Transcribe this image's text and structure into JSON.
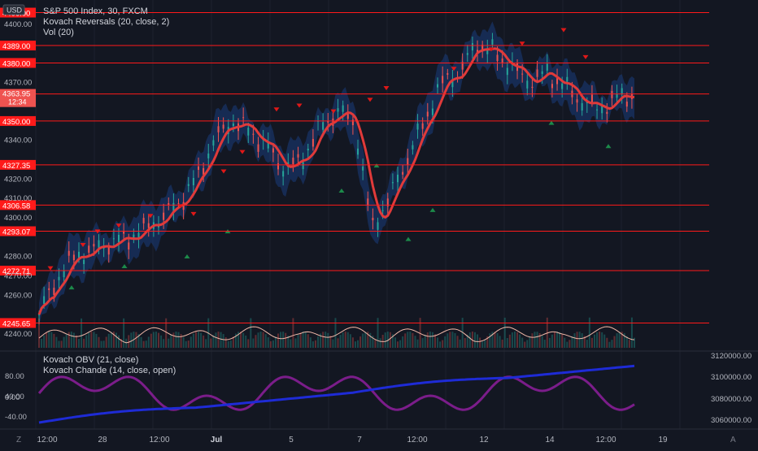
{
  "legend": {
    "symbol_line": "S&P 500 Index, 30, FXCM",
    "indicator_1": "Kovach Reversals (20, close, 2)",
    "indicator_2": "Vol (20)",
    "currency_badge": "USD"
  },
  "lower_pane": {
    "legend_1": "Kovach OBV (21, close)",
    "legend_2": "Kovach Chande (14, close, open)"
  },
  "price_axis_labels": [
    "4400.00",
    "4370.00",
    "4340.00",
    "4320.00",
    "4310.00",
    "4300.00",
    "4280.00",
    "4270.00",
    "4260.00",
    "4240.00"
  ],
  "horizontal_levels": [
    {
      "label": "4406.00"
    },
    {
      "label": "4389.00"
    },
    {
      "label": "4380.00"
    },
    {
      "label": "4364.00"
    },
    {
      "label": "4350.00"
    },
    {
      "label": "4327.35"
    },
    {
      "label": "4306.58"
    },
    {
      "label": "4293.07"
    },
    {
      "label": "4272.71"
    },
    {
      "label": "4245.65"
    }
  ],
  "last_price": {
    "price": "4363.95",
    "countdown": "12:34"
  },
  "lower_left_axis": [
    "80.00",
    "40.00",
    "0.00",
    "-40.00"
  ],
  "lower_right_axis": [
    "3120000.00",
    "3100000.00",
    "3080000.00",
    "3060000.00"
  ],
  "time_axis": [
    "12:00",
    "28",
    "12:00",
    "Jul",
    "5",
    "7",
    "12:00",
    "12",
    "14",
    "12:00",
    "19"
  ],
  "time_axis_icons": {
    "left": "Z",
    "right": "A"
  },
  "colors": {
    "background": "#131722",
    "level": "#ff1a1a",
    "ma": "#e03a3a",
    "band": "#1a3c7c",
    "obv": "#1e2bd6",
    "chande": "#7b1d8a",
    "up_arrow": "#1c8a4a",
    "down_arrow": "#e01818"
  },
  "chart_data": {
    "type": "line",
    "title": "S&P 500 Index, 30, FXCM",
    "y_range": [
      4232,
      4410
    ],
    "x": [
      "12:00",
      "28",
      "12:00",
      "Jul",
      "5",
      "7",
      "12:00",
      "12",
      "14",
      "12:00"
    ],
    "price_series": [
      4250,
      4268,
      4280,
      4283,
      4287,
      4289,
      4294,
      4300,
      4308,
      4320,
      4340,
      4350,
      4345,
      4337,
      4325,
      4330,
      4346,
      4355,
      4350,
      4295,
      4310,
      4330,
      4350,
      4370,
      4375,
      4390,
      4385,
      4378,
      4370,
      4375,
      4368,
      4360,
      4356,
      4362,
      4364
    ],
    "levels": [
      4406.0,
      4389.0,
      4380.0,
      4364.0,
      4350.0,
      4327.35,
      4306.58,
      4293.07,
      4272.71,
      4245.65
    ],
    "last_price": 4363.95
  }
}
